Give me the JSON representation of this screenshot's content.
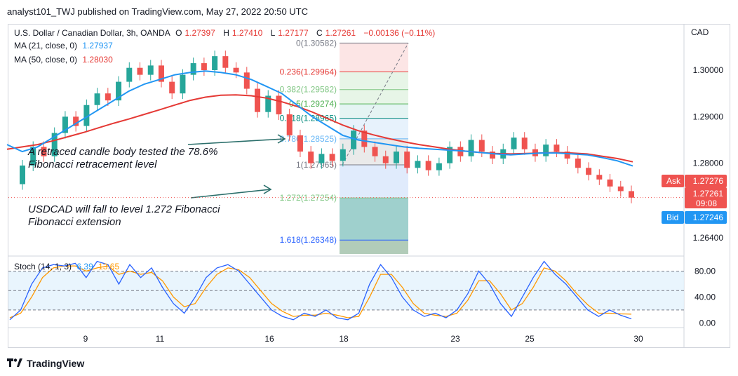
{
  "header": {
    "published_line": "analyst101_TWJ published on TradingView.com, May 27, 2022 20:50 UTC"
  },
  "legend": {
    "symbol": "U.S. Dollar / Canadian Dollar, 3h, OANDA",
    "open_label": "O",
    "open_value": "1.27397",
    "high_label": "H",
    "high_value": "1.27410",
    "low_label": "L",
    "low_value": "1.27177",
    "close_label": "C",
    "close_value": "1.27261",
    "change": "−0.00136 (−0.11%)",
    "ma21_label": "MA (21, close, 0)",
    "ma21_value": "1.27937",
    "ma50_label": "MA (50, close, 0)",
    "ma50_value": "1.28030",
    "stoch_label": "Stoch (14, 1, 3)",
    "stoch_k": "6.39",
    "stoch_d": "13.65"
  },
  "annotations": {
    "note1": "A retraced candle body tested the 78.6% Fibonacci retracement level",
    "note2": "USDCAD will fall to level 1.272 Fibonacci Fibonacci extension"
  },
  "price_tags": {
    "currency": "CAD",
    "ask_label": "Ask",
    "ask_value": "1.27276",
    "last_value": "1.27261",
    "countdown": "09:08",
    "bid_label": "Bid",
    "bid_value": "1.27246"
  },
  "footer": {
    "brand": "TradingView"
  },
  "colors": {
    "up": "#26a69a",
    "down": "#ef5350",
    "ma21": "#2196f3",
    "ma50": "#e53935",
    "stoch_k": "#2962ff",
    "stoch_d": "#ff9800",
    "stoch_band": "#e3f2fd"
  },
  "chart_data": {
    "type": "candlestick",
    "title": "U.S. Dollar / Canadian Dollar, 3h, OANDA",
    "x_tick_labels": [
      "9",
      "11",
      "16",
      "18",
      "23",
      "25",
      "30"
    ],
    "y_tick_labels": [
      "1.30000",
      "1.29000",
      "1.28000",
      "1.26400"
    ],
    "y_ticks": [
      1.3,
      1.29,
      1.28,
      1.264
    ],
    "ylim": [
      1.2605,
      1.3098
    ],
    "fibonacci": [
      {
        "label": "0(1.30582)",
        "value": 1.30582,
        "color": "#787b86"
      },
      {
        "label": "0.236(1.29964)",
        "value": 1.29964,
        "color": "#e53935"
      },
      {
        "label": "0.382(1.29582)",
        "value": 1.29582,
        "color": "#81c784"
      },
      {
        "label": "0.5(1.29274)",
        "value": 1.29274,
        "color": "#4caf50"
      },
      {
        "label": "0.618(1.28965)",
        "value": 1.28965,
        "color": "#00897b"
      },
      {
        "label": "0.786(1.28525)",
        "value": 1.28525,
        "color": "#64b5f6"
      },
      {
        "label": "1(1.27965)",
        "value": 1.27965,
        "color": "#787b86"
      },
      {
        "label": "1.272(1.27254)",
        "value": 1.27254,
        "color": "#81c784"
      },
      {
        "label": "1.618(1.26348)",
        "value": 1.26348,
        "color": "#2962ff"
      }
    ],
    "ma21": [
      1.284,
      1.2825,
      1.2835,
      1.2855,
      1.2875,
      1.2895,
      1.2915,
      1.2935,
      1.2955,
      1.297,
      1.298,
      1.299,
      1.2995,
      1.2998,
      1.2995,
      1.299,
      1.298,
      1.2965,
      1.295,
      1.2925,
      1.29,
      1.288,
      1.286,
      1.285,
      1.2845,
      1.284,
      1.2835,
      1.2832,
      1.283,
      1.2828,
      1.2826,
      1.2823,
      1.282,
      1.2818,
      1.282,
      1.2822,
      1.2822,
      1.282,
      1.2818,
      1.2812,
      1.2805,
      1.2794
    ],
    "ma50": [
      1.283,
      1.2835,
      1.284,
      1.2848,
      1.2857,
      1.2866,
      1.2876,
      1.2886,
      1.2895,
      1.2905,
      1.2915,
      1.2925,
      1.2935,
      1.2942,
      1.2946,
      1.2947,
      1.2945,
      1.294,
      1.2932,
      1.2922,
      1.291,
      1.2896,
      1.2882,
      1.287,
      1.2861,
      1.2853,
      1.2846,
      1.284,
      1.2835,
      1.283,
      1.2826,
      1.2823,
      1.2821,
      1.282,
      1.2821,
      1.2822,
      1.2823,
      1.2822,
      1.282,
      1.2815,
      1.281,
      1.2803
    ],
    "candles": [
      [
        1.2755,
        1.2795
      ],
      [
        1.2795,
        1.2835
      ],
      [
        1.2835,
        1.2815
      ],
      [
        1.2815,
        1.2865
      ],
      [
        1.2865,
        1.29
      ],
      [
        1.29,
        1.288
      ],
      [
        1.288,
        1.2925
      ],
      [
        1.2925,
        1.295
      ],
      [
        1.295,
        1.2935
      ],
      [
        1.2935,
        1.2975
      ],
      [
        1.2975,
        1.3005
      ],
      [
        1.3005,
        1.299
      ],
      [
        1.299,
        1.301
      ],
      [
        1.301,
        1.2975
      ],
      [
        1.2975,
        1.295
      ],
      [
        1.295,
        1.299
      ],
      [
        1.299,
        1.3015
      ],
      [
        1.3015,
        1.3
      ],
      [
        1.3,
        1.303
      ],
      [
        1.303,
        1.3005
      ],
      [
        1.3005,
        1.2995
      ],
      [
        1.2995,
        1.296
      ],
      [
        1.296,
        1.291
      ],
      [
        1.291,
        1.2945
      ],
      [
        1.2945,
        1.2905
      ],
      [
        1.2905,
        1.286
      ],
      [
        1.286,
        1.2825
      ],
      [
        1.2825,
        1.28
      ],
      [
        1.28,
        1.282
      ],
      [
        1.282,
        1.2805
      ],
      [
        1.2805,
        1.283
      ],
      [
        1.283,
        1.287
      ],
      [
        1.287,
        1.2835
      ],
      [
        1.2835,
        1.2815
      ],
      [
        1.2815,
        1.28
      ],
      [
        1.28,
        1.2825
      ],
      [
        1.2825,
        1.279
      ],
      [
        1.279,
        1.2805
      ],
      [
        1.2805,
        1.2785
      ],
      [
        1.2785,
        1.28
      ],
      [
        1.28,
        1.2835
      ],
      [
        1.2835,
        1.2815
      ],
      [
        1.2815,
        1.285
      ],
      [
        1.285,
        1.2825
      ],
      [
        1.2825,
        1.281
      ],
      [
        1.281,
        1.283
      ],
      [
        1.283,
        1.2855
      ],
      [
        1.2855,
        1.283
      ],
      [
        1.283,
        1.2815
      ],
      [
        1.2815,
        1.284
      ],
      [
        1.284,
        1.2825
      ],
      [
        1.2825,
        1.281
      ],
      [
        1.281,
        1.279
      ],
      [
        1.279,
        1.2775
      ],
      [
        1.2775,
        1.2765
      ],
      [
        1.2765,
        1.275
      ],
      [
        1.275,
        1.274
      ],
      [
        1.274,
        1.2726
      ]
    ],
    "stoch_levels": [
      80,
      50,
      20
    ],
    "stoch_ylim": [
      -5,
      100
    ],
    "stoch_tick_labels": [
      "80.00",
      "40.00",
      "0.00"
    ],
    "stoch_ticks": [
      80,
      40,
      0
    ],
    "stoch_k": [
      5,
      20,
      60,
      85,
      90,
      88,
      92,
      70,
      95,
      90,
      60,
      90,
      70,
      85,
      55,
      30,
      15,
      40,
      70,
      85,
      90,
      80,
      60,
      40,
      20,
      10,
      5,
      15,
      10,
      20,
      8,
      5,
      15,
      60,
      90,
      70,
      40,
      20,
      10,
      15,
      8,
      20,
      45,
      80,
      60,
      30,
      10,
      40,
      70,
      95,
      75,
      60,
      40,
      20,
      10,
      20,
      12,
      6.39
    ],
    "stoch_d": [
      8,
      15,
      40,
      70,
      85,
      88,
      88,
      80,
      85,
      88,
      75,
      80,
      75,
      78,
      65,
      40,
      25,
      30,
      55,
      75,
      85,
      82,
      70,
      50,
      30,
      18,
      10,
      12,
      12,
      15,
      12,
      8,
      10,
      40,
      75,
      75,
      55,
      30,
      15,
      12,
      10,
      15,
      35,
      65,
      65,
      45,
      20,
      30,
      55,
      85,
      80,
      65,
      45,
      28,
      15,
      15,
      14,
      13.65
    ]
  }
}
